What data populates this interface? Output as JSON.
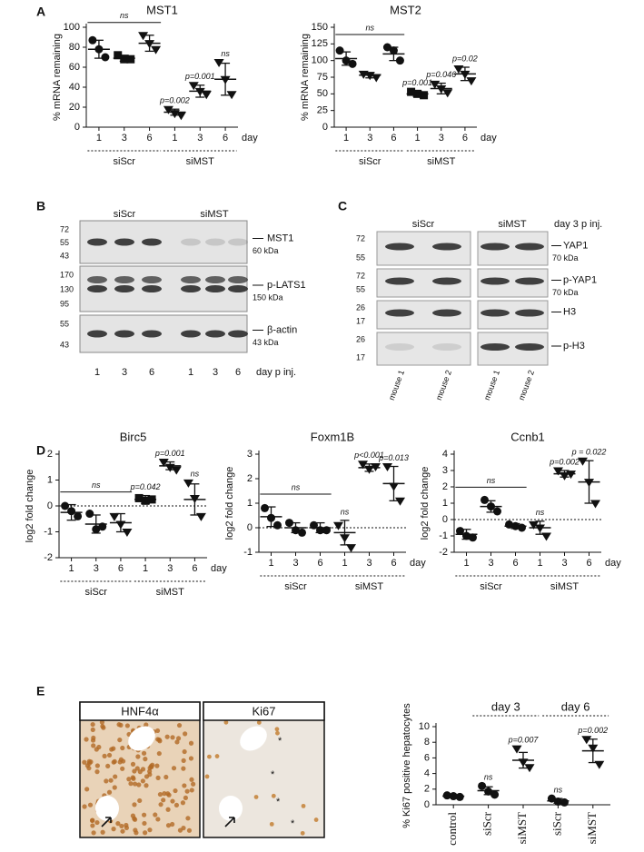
{
  "panel_labels": [
    "A",
    "B",
    "C",
    "D",
    "E"
  ],
  "chart_data": [
    {
      "type": "dotplot",
      "title": "MST1",
      "ylabel": "% mRNA remaining",
      "xlabel": "day",
      "categories": [
        "1",
        "3",
        "6",
        "1",
        "3",
        "6"
      ],
      "groups": [
        "siScr",
        "siMST"
      ],
      "group_of": [
        0,
        0,
        0,
        1,
        1,
        1
      ],
      "markers": [
        "circle",
        "square",
        "triangle",
        "triangle",
        "triangle",
        "triangle"
      ],
      "points": [
        [
          87,
          78,
          70
        ],
        [
          72,
          68,
          68
        ],
        [
          92,
          84,
          78
        ],
        [
          18,
          14,
          12
        ],
        [
          42,
          36,
          33
        ],
        [
          65,
          48,
          33
        ]
      ],
      "means": [
        78,
        69,
        84,
        15,
        36,
        48
      ],
      "sd": [
        9,
        3,
        8,
        3,
        6,
        16
      ],
      "bracket_label": "ns",
      "point_labels": [
        null,
        null,
        null,
        "p=0.002",
        "p=0.001",
        "ns"
      ],
      "ylim": [
        0,
        100
      ],
      "yticks": [
        0,
        20,
        40,
        60,
        80,
        100
      ],
      "zero_line": false
    },
    {
      "type": "dotplot",
      "title": "MST2",
      "ylabel": "% mRNA remaining",
      "xlabel": "day",
      "categories": [
        "1",
        "3",
        "6",
        "1",
        "3",
        "6"
      ],
      "groups": [
        "siScr",
        "siMST"
      ],
      "group_of": [
        0,
        0,
        0,
        1,
        1,
        1
      ],
      "markers": [
        "circle",
        "triangle",
        "circle",
        "square",
        "triangle",
        "triangle"
      ],
      "points": [
        [
          115,
          100,
          95
        ],
        [
          80,
          78,
          75
        ],
        [
          120,
          115,
          100
        ],
        [
          53,
          50,
          48
        ],
        [
          65,
          58,
          52
        ],
        [
          88,
          80,
          70
        ]
      ],
      "means": [
        103,
        78,
        110,
        50,
        58,
        80
      ],
      "sd": [
        10,
        4,
        10,
        4,
        8,
        10
      ],
      "bracket_label": "ns",
      "point_labels": [
        null,
        null,
        null,
        "p=0.001",
        "p=0.046",
        "p=0.02"
      ],
      "ylim": [
        0,
        150
      ],
      "yticks": [
        0,
        25,
        50,
        75,
        100,
        125,
        150
      ],
      "zero_line": false
    },
    {
      "type": "dotplot",
      "title": "Birc5",
      "ylabel": "log2 fold change",
      "xlabel": "day",
      "categories": [
        "1",
        "3",
        "6",
        "1",
        "3",
        "6"
      ],
      "groups": [
        "siScr",
        "siMST"
      ],
      "group_of": [
        0,
        0,
        0,
        1,
        1,
        1
      ],
      "markers": [
        "circle",
        "circle",
        "triangle",
        "square",
        "triangle",
        "triangle"
      ],
      "points": [
        [
          0,
          -0.2,
          -0.4
        ],
        [
          -0.3,
          -0.9,
          -0.8
        ],
        [
          -0.4,
          -0.7,
          -1.0
        ],
        [
          0.3,
          0.2,
          0.25
        ],
        [
          1.7,
          1.5,
          1.4
        ],
        [
          0.9,
          0.3,
          -0.4
        ]
      ],
      "means": [
        -0.25,
        -0.7,
        -0.65,
        0.25,
        1.55,
        0.25
      ],
      "sd": [
        0.3,
        0.35,
        0.35,
        0.15,
        0.15,
        0.6
      ],
      "bracket_label": "ns",
      "point_labels": [
        null,
        null,
        null,
        "p=0.042",
        "p=0.001",
        "ns"
      ],
      "ylim": [
        -2,
        2
      ],
      "yticks": [
        -2,
        -1,
        0,
        1,
        2
      ],
      "zero_line": true
    },
    {
      "type": "dotplot",
      "title": "Foxm1B",
      "ylabel": "log2 fold change",
      "xlabel": "day",
      "categories": [
        "1",
        "3",
        "6",
        "1",
        "3",
        "6"
      ],
      "groups": [
        "siScr",
        "siMST"
      ],
      "group_of": [
        0,
        0,
        0,
        1,
        1,
        1
      ],
      "markers": [
        "circle",
        "circle",
        "circle",
        "triangle",
        "triangle",
        "triangle"
      ],
      "points": [
        [
          0.8,
          0.4,
          0.1
        ],
        [
          0.2,
          -0.1,
          -0.2
        ],
        [
          0.1,
          -0.1,
          -0.1
        ],
        [
          0.1,
          -0.4,
          -0.8
        ],
        [
          2.6,
          2.4,
          2.5
        ],
        [
          2.5,
          1.7,
          1.1
        ]
      ],
      "means": [
        0.45,
        0,
        0,
        -0.2,
        2.45,
        1.8
      ],
      "sd": [
        0.4,
        0.2,
        0.2,
        0.5,
        0.15,
        0.7
      ],
      "bracket_label": "ns",
      "point_labels": [
        null,
        null,
        null,
        "ns",
        "p<0.001",
        "p=0.013"
      ],
      "ylim": [
        -1,
        3
      ],
      "yticks": [
        -1,
        0,
        1,
        2,
        3
      ],
      "zero_line": true
    },
    {
      "type": "dotplot",
      "title": "Ccnb1",
      "ylabel": "log2 fold change",
      "xlabel": "day",
      "categories": [
        "1",
        "3",
        "6",
        "1",
        "3",
        "6"
      ],
      "groups": [
        "siScr",
        "siMST"
      ],
      "group_of": [
        0,
        0,
        0,
        1,
        1,
        1
      ],
      "markers": [
        "circle",
        "circle",
        "circle",
        "triangle",
        "triangle",
        "triangle"
      ],
      "points": [
        [
          -0.7,
          -1.0,
          -1.1
        ],
        [
          1.2,
          0.8,
          0.5
        ],
        [
          -0.3,
          -0.4,
          -0.5
        ],
        [
          -0.3,
          -0.5,
          -1.0
        ],
        [
          3.0,
          2.7,
          2.8
        ],
        [
          3.6,
          2.3,
          1.0
        ]
      ],
      "means": [
        -0.9,
        0.8,
        -0.4,
        -0.5,
        2.8,
        2.3
      ],
      "sd": [
        0.3,
        0.35,
        0.15,
        0.4,
        0.2,
        1.3
      ],
      "bracket_label": "ns",
      "point_labels": [
        null,
        null,
        null,
        "ns",
        "p=0.002",
        "p = 0.022"
      ],
      "ylim": [
        -2,
        4
      ],
      "yticks": [
        -2,
        -1,
        0,
        1,
        2,
        3,
        4
      ],
      "zero_line": true
    },
    {
      "type": "dotplot",
      "ylabel": "% Ki67 positive hepatocytes",
      "categories": [
        "control",
        "siScr",
        "siMST",
        "siScr",
        "siMST"
      ],
      "groups": [
        "day 3",
        "day 6"
      ],
      "group_of": [
        null,
        0,
        0,
        1,
        1
      ],
      "group_position": "top",
      "rotate_categories": true,
      "markers": [
        "circle",
        "circle",
        "triangle",
        "circle",
        "triangle"
      ],
      "points": [
        [
          1.2,
          1.1,
          1.0
        ],
        [
          2.4,
          1.7,
          1.3
        ],
        [
          7.2,
          5.5,
          4.8
        ],
        [
          0.8,
          0.4,
          0.3
        ],
        [
          8.4,
          7.3,
          5.2
        ]
      ],
      "means": [
        1.1,
        1.8,
        5.7,
        0.5,
        6.9
      ],
      "sd": [
        0.1,
        0.5,
        1.0,
        0.3,
        1.5
      ],
      "point_labels": [
        null,
        "ns",
        "p=0.007",
        "ns",
        "p=0.002"
      ],
      "ylim": [
        0,
        10
      ],
      "yticks": [
        0,
        2,
        4,
        6,
        8,
        10
      ],
      "zero_line": false
    }
  ],
  "blots": {
    "B": {
      "conditions": [
        "siScr",
        "siMST"
      ],
      "rows": [
        {
          "mw": [
            "72",
            "55",
            "43"
          ],
          "protein": "MST1",
          "size": "60 kDa"
        },
        {
          "mw": [
            "170",
            "130",
            "95"
          ],
          "protein": "p-LATS1",
          "size": "150 kDa"
        },
        {
          "mw": [
            "55",
            "43"
          ],
          "protein": "β-actin",
          "size": "43 kDa"
        }
      ],
      "lanes": [
        "1",
        "3",
        "6",
        "1",
        "3",
        "6"
      ],
      "lane_unit": "day p inj."
    },
    "C": {
      "conditions": [
        "siScr",
        "siMST"
      ],
      "timepoint": "day 3 p inj.",
      "rows": [
        {
          "mw": [
            "72",
            "55"
          ],
          "protein": "YAP1",
          "size": "70 kDa"
        },
        {
          "mw": [
            "72",
            "55"
          ],
          "protein": "p-YAP1",
          "size": "70 kDa"
        },
        {
          "mw": [
            "26",
            "17"
          ],
          "protein": "H3"
        },
        {
          "mw": [
            "26",
            "17"
          ],
          "protein": "p-H3"
        }
      ],
      "lanes": [
        "mouse 1",
        "mouse 2",
        "mouse 1",
        "mouse 2"
      ]
    }
  },
  "micrographs": {
    "stains": [
      "HNF4α",
      "Ki67"
    ],
    "annotations": [
      "*",
      "*",
      "*",
      "*"
    ]
  }
}
